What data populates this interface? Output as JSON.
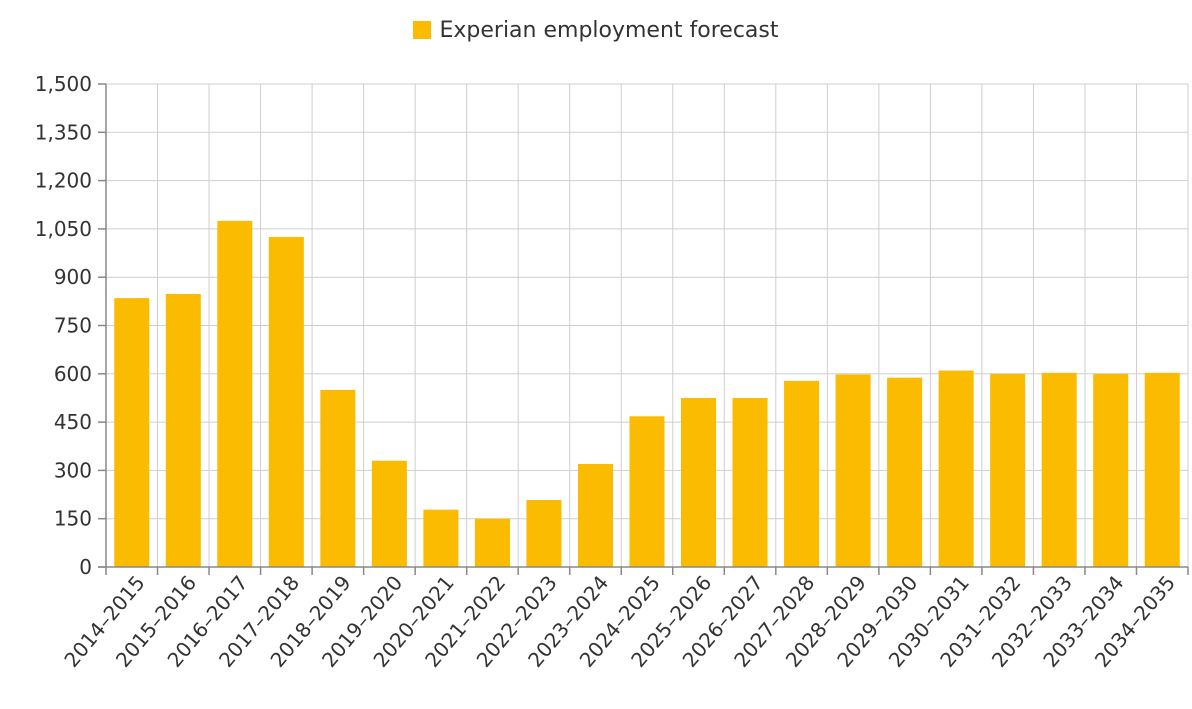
{
  "chart_data": {
    "type": "bar",
    "categories": [
      "2014–2015",
      "2015–2016",
      "2016–2017",
      "2017–2018",
      "2018–2019",
      "2019–2020",
      "2020–2021",
      "2021–2022",
      "2022–2023",
      "2023–2024",
      "2024–2025",
      "2025–2026",
      "2026–2027",
      "2027–2028",
      "2028–2029",
      "2029–2030",
      "2030–2031",
      "2031–2032",
      "2032–2033",
      "2033–2034",
      "2034–2035"
    ],
    "series": [
      {
        "name": "Experian employment forecast",
        "values": [
          835,
          848,
          1075,
          1025,
          550,
          330,
          178,
          150,
          208,
          320,
          468,
          525,
          525,
          578,
          598,
          588,
          610,
          600,
          603,
          600,
          603
        ]
      }
    ],
    "yticks": [
      "0",
      "150",
      "300",
      "450",
      "600",
      "750",
      "900",
      "1,050",
      "1,200",
      "1,350",
      "1,500"
    ],
    "ylim": [
      0,
      1500
    ],
    "grid": true,
    "legend_position": "top-center",
    "bar_color": "#FABB00"
  }
}
